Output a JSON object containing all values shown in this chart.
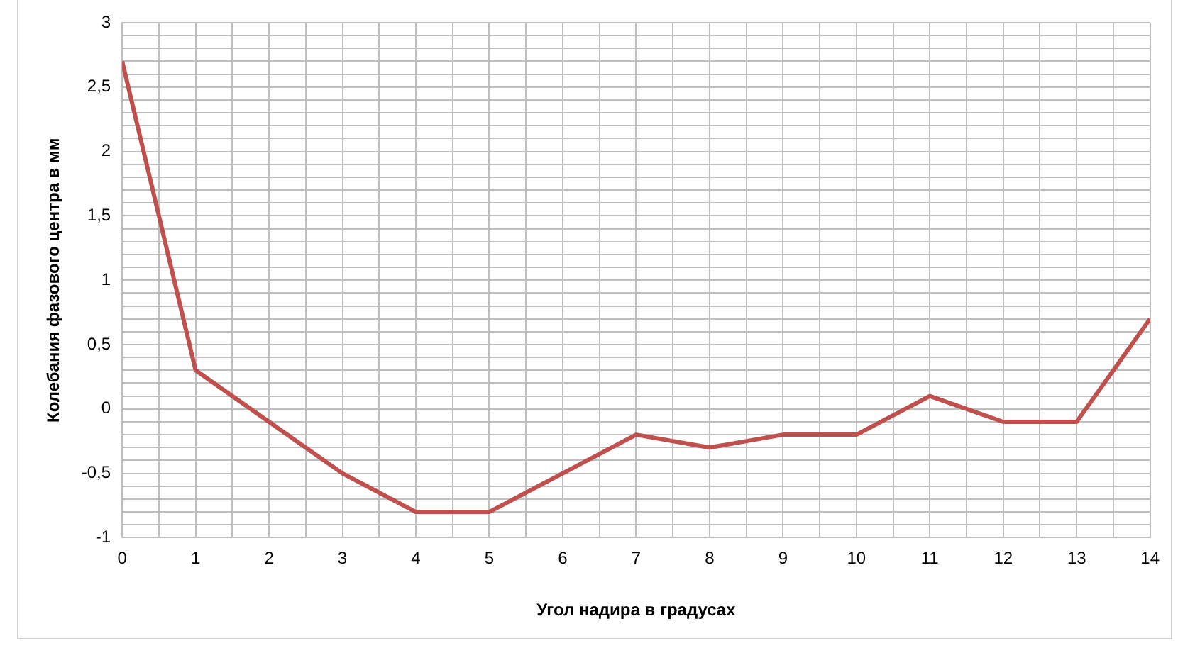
{
  "chart_data": {
    "type": "line",
    "xlabel": "Угол надира в градусах",
    "ylabel": "Колебания фазового центра в мм",
    "x": [
      0,
      1,
      2,
      3,
      4,
      5,
      6,
      7,
      8,
      9,
      10,
      11,
      12,
      13,
      14
    ],
    "series": [
      {
        "color": "#c0504d",
        "values": [
          2.7,
          0.3,
          -0.1,
          -0.5,
          -0.8,
          -0.8,
          -0.5,
          -0.2,
          -0.3,
          -0.2,
          -0.2,
          0.1,
          -0.1,
          -0.1,
          0.7
        ]
      }
    ],
    "xlim": [
      0,
      14
    ],
    "xticks": [
      0,
      {
        "value": 0.5,
        "label": null
      },
      1,
      {
        "value": 1.5,
        "label": null
      },
      2,
      {
        "value": 2.5,
        "label": null
      },
      3,
      {
        "value": 3.5,
        "label": null
      },
      4,
      {
        "value": 4.5,
        "label": null
      },
      5,
      {
        "value": 5.5,
        "label": null
      },
      6,
      {
        "value": 6.5,
        "label": null
      },
      7,
      {
        "value": 7.5,
        "label": null
      },
      8,
      {
        "value": 8.5,
        "label": null
      },
      9,
      {
        "value": 9.5,
        "label": null
      },
      10,
      {
        "value": 10.5,
        "label": null
      },
      11,
      {
        "value": 11.5,
        "label": null
      },
      12,
      {
        "value": 12.5,
        "label": null
      },
      13,
      {
        "value": 13.5,
        "label": null
      },
      14
    ],
    "ylim": [
      -1,
      3
    ],
    "yticks": [
      -1,
      {
        "value": -0.9,
        "label": null
      },
      {
        "value": -0.8,
        "label": null
      },
      {
        "value": -0.7,
        "label": null
      },
      {
        "value": -0.6,
        "label": null
      },
      {
        "value": -0.5,
        "label": "-0,5"
      },
      {
        "value": -0.4,
        "label": null
      },
      {
        "value": -0.3,
        "label": null
      },
      {
        "value": -0.2,
        "label": null
      },
      {
        "value": -0.1,
        "label": null
      },
      0,
      {
        "value": 0.1,
        "label": null
      },
      {
        "value": 0.2,
        "label": null
      },
      {
        "value": 0.3,
        "label": null
      },
      {
        "value": 0.4,
        "label": null
      },
      {
        "value": 0.5,
        "label": "0,5"
      },
      {
        "value": 0.6,
        "label": null
      },
      {
        "value": 0.7,
        "label": null
      },
      {
        "value": 0.8,
        "label": null
      },
      {
        "value": 0.9,
        "label": null
      },
      1,
      {
        "value": 1.1,
        "label": null
      },
      {
        "value": 1.2,
        "label": null
      },
      {
        "value": 1.3,
        "label": null
      },
      {
        "value": 1.4,
        "label": null
      },
      {
        "value": 1.5,
        "label": "1,5"
      },
      {
        "value": 1.6,
        "label": null
      },
      {
        "value": 1.7,
        "label": null
      },
      {
        "value": 1.8,
        "label": null
      },
      {
        "value": 1.9,
        "label": null
      },
      2,
      {
        "value": 2.1,
        "label": null
      },
      {
        "value": 2.2,
        "label": null
      },
      {
        "value": 2.3,
        "label": null
      },
      {
        "value": 2.4,
        "label": null
      },
      {
        "value": 2.5,
        "label": "2,5"
      },
      {
        "value": 2.6,
        "label": null
      },
      {
        "value": 2.7,
        "label": null
      },
      {
        "value": 2.8,
        "label": null
      },
      {
        "value": 2.9,
        "label": null
      },
      3
    ],
    "grid": true,
    "marker": "none",
    "line_style": "solid"
  }
}
